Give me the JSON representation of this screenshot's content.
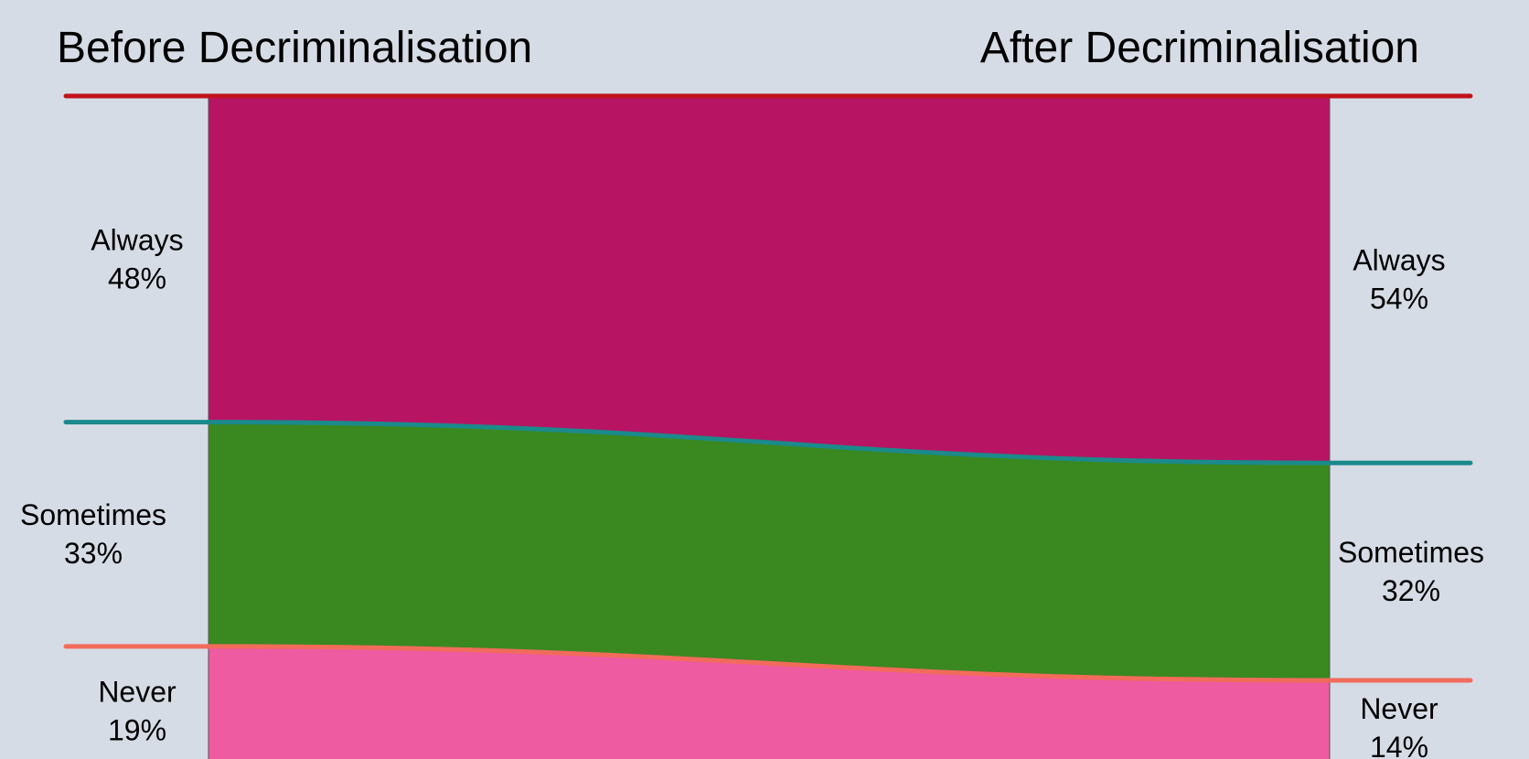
{
  "chart_data": {
    "type": "area",
    "title": "",
    "x": [
      "Before Decriminalisation",
      "After Decriminalisation"
    ],
    "ylim": [
      0,
      100
    ],
    "series": [
      {
        "name": "Always",
        "values": [
          48,
          54
        ],
        "color": "#b71464",
        "line_color": "#c0121c"
      },
      {
        "name": "Sometimes",
        "values": [
          33,
          32
        ],
        "color": "#3a8820",
        "line_color": "#1b8a8a"
      },
      {
        "name": "Never",
        "values": [
          19,
          14
        ],
        "color": "#ef5ba1",
        "line_color": "#f26b5b"
      }
    ],
    "labels": {
      "before": [
        "Always\n48%",
        "Sometimes\n33%",
        "Never\n19%"
      ],
      "after": [
        "Always\n54%",
        "Sometimes\n32%",
        "Never\n14%"
      ]
    }
  },
  "colors": {
    "background": "#d6dce5"
  }
}
